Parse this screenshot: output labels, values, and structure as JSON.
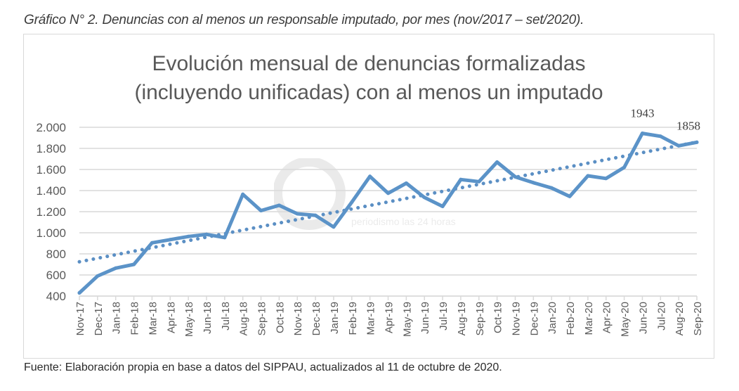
{
  "caption": "Gráfico N° 2. Denuncias con al menos un responsable imputado, por mes (nov/2017 – set/2020).",
  "source": "Fuente: Elaboración propia en base a datos del SIPPAU, actualizados al 11 de octubre de 2020.",
  "watermark": {
    "logo": "@",
    "tagline": "periodismo las 24 horas"
  },
  "colors": {
    "series": "#5b93c8",
    "trend": "#5b8fc4",
    "grid": "#d9d9d9",
    "tick_text": "#595959"
  },
  "chart_data": {
    "type": "line",
    "title_lines": [
      "Evolución mensual de denuncias formalizadas",
      "(incluyendo unificadas) con al menos un imputado"
    ],
    "xlabel": "",
    "ylabel": "",
    "ylim": [
      400,
      2000
    ],
    "yticks": [
      400,
      600,
      800,
      1000,
      1200,
      1400,
      1600,
      1800,
      2000
    ],
    "ytick_labels": [
      "400",
      "600",
      "800",
      "1.000",
      "1.200",
      "1.400",
      "1.600",
      "1.800",
      "2.000"
    ],
    "grid": true,
    "legend": "none",
    "categories": [
      "Nov-17",
      "Dec-17",
      "Jan-18",
      "Feb-18",
      "Mar-18",
      "Apr-18",
      "May-18",
      "Jun-18",
      "Jul-18",
      "Aug-18",
      "Sep-18",
      "Oct-18",
      "Nov-18",
      "Dec-18",
      "Jan-19",
      "Feb-19",
      "Mar-19",
      "Apr-19",
      "May-19",
      "Jun-19",
      "Jul-19",
      "Aug-19",
      "Sep-19",
      "Oct-19",
      "Nov-19",
      "Dec-19",
      "Jan-20",
      "Feb-20",
      "Mar-20",
      "Apr-20",
      "May-20",
      "Jun-20",
      "Jul-20",
      "Aug-20",
      "Sep-20"
    ],
    "series": [
      {
        "name": "Denuncias con al menos un imputado",
        "values": [
          430,
          590,
          665,
          700,
          905,
          935,
          965,
          985,
          955,
          1365,
          1210,
          1260,
          1180,
          1165,
          1055,
          1290,
          1535,
          1375,
          1470,
          1335,
          1250,
          1505,
          1485,
          1670,
          1530,
          1475,
          1425,
          1345,
          1540,
          1515,
          1620,
          1943,
          1915,
          1825,
          1858
        ]
      }
    ],
    "trendline": {
      "type": "linear",
      "style": "dotted",
      "start": 725,
      "end": 1860
    },
    "annotations": [
      {
        "category": "Jun-20",
        "label": "1943"
      },
      {
        "category": "Sep-20",
        "label": "1858"
      }
    ]
  }
}
